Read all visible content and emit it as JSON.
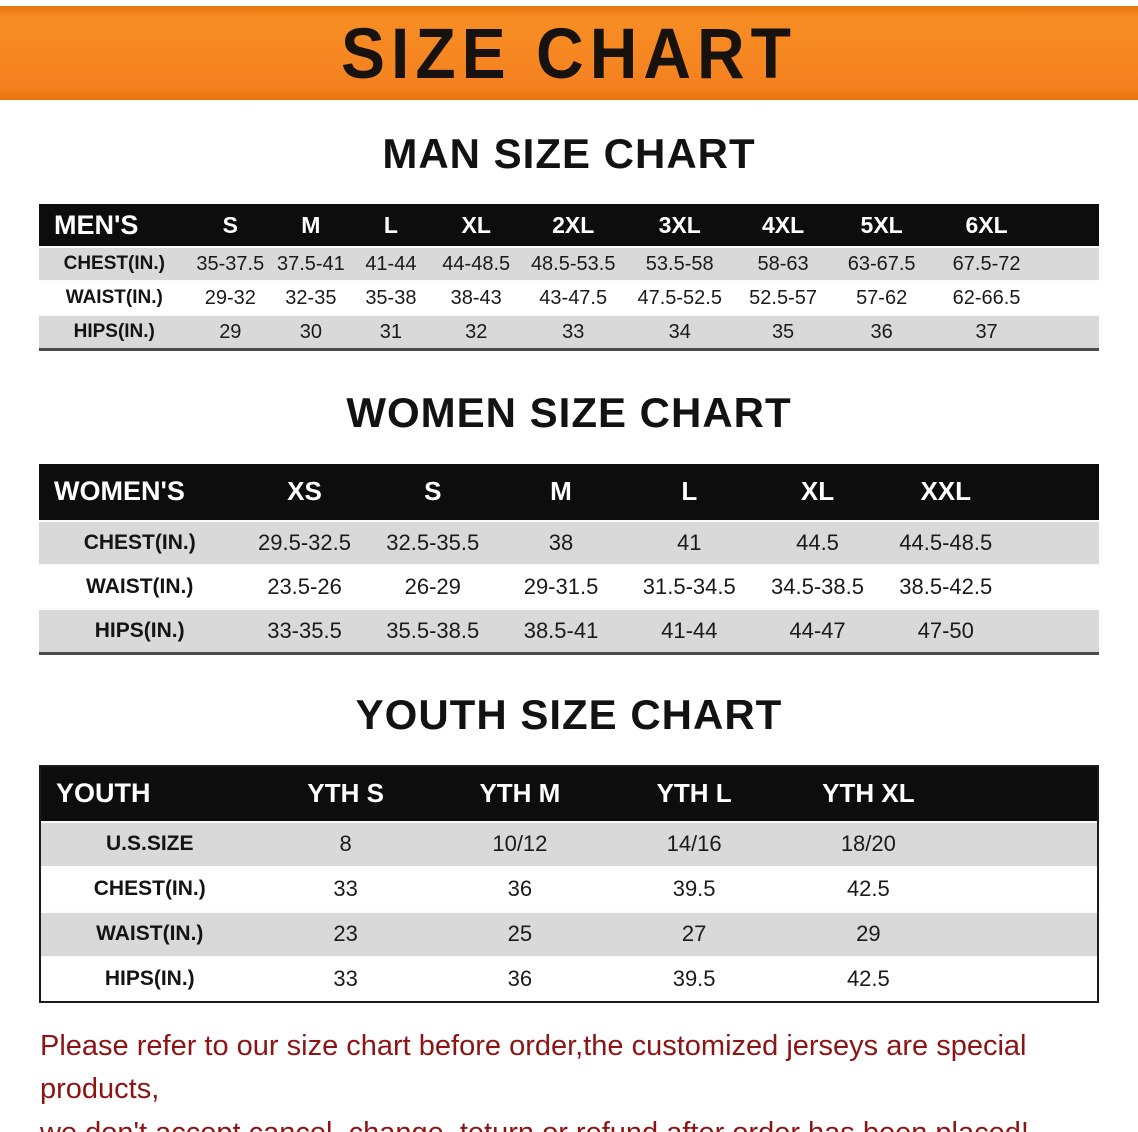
{
  "banner": {
    "title": "SIZE CHART"
  },
  "colors": {
    "banner_bg": "#F48120",
    "table_header_bg": "#0D0D0D",
    "row_stripe": "#D9D9D9",
    "footer_text": "#8D1414"
  },
  "men": {
    "heading": "MAN SIZE CHART",
    "header": [
      "MEN'S",
      "S",
      "M",
      "L",
      "XL",
      "2XL",
      "3XL",
      "4XL",
      "5XL",
      "6XL"
    ],
    "rows": [
      [
        "CHEST(IN.)",
        "35-37.5",
        "37.5-41",
        "41-44",
        "44-48.5",
        "48.5-53.5",
        "53.5-58",
        "58-63",
        "63-67.5",
        "67.5-72"
      ],
      [
        "WAIST(IN.)",
        "29-32",
        "32-35",
        "35-38",
        "38-43",
        "43-47.5",
        "47.5-52.5",
        "52.5-57",
        "57-62",
        "62-66.5"
      ],
      [
        "HIPS(IN.)",
        "29",
        "30",
        "31",
        "32",
        "33",
        "34",
        "35",
        "36",
        "37"
      ]
    ]
  },
  "women": {
    "heading": "WOMEN SIZE CHART",
    "header": [
      "WOMEN'S",
      "XS",
      "S",
      "M",
      "L",
      "XL",
      "XXL"
    ],
    "rows": [
      [
        "CHEST(IN.)",
        "29.5-32.5",
        "32.5-35.5",
        "38",
        "41",
        "44.5",
        "44.5-48.5"
      ],
      [
        "WAIST(IN.)",
        "23.5-26",
        "26-29",
        "29-31.5",
        "31.5-34.5",
        "34.5-38.5",
        "38.5-42.5"
      ],
      [
        "HIPS(IN.)",
        "33-35.5",
        "35.5-38.5",
        "38.5-41",
        "41-44",
        "44-47",
        "47-50"
      ]
    ]
  },
  "youth": {
    "heading": "YOUTH SIZE CHART",
    "header": [
      "YOUTH",
      "YTH S",
      "YTH M",
      "YTH L",
      "YTH XL"
    ],
    "rows": [
      [
        "U.S.SIZE",
        "8",
        "10/12",
        "14/16",
        "18/20"
      ],
      [
        "CHEST(IN.)",
        "33",
        "36",
        "39.5",
        "42.5"
      ],
      [
        "WAIST(IN.)",
        "23",
        "25",
        "27",
        "29"
      ],
      [
        "HIPS(IN.)",
        "33",
        "36",
        "39.5",
        "42.5"
      ]
    ]
  },
  "footer": {
    "line1": "Please refer to our size chart before order,the customized jerseys are special products,",
    "line2": "we don't accept cancel, change, teturn or refund after order has been placed!"
  }
}
